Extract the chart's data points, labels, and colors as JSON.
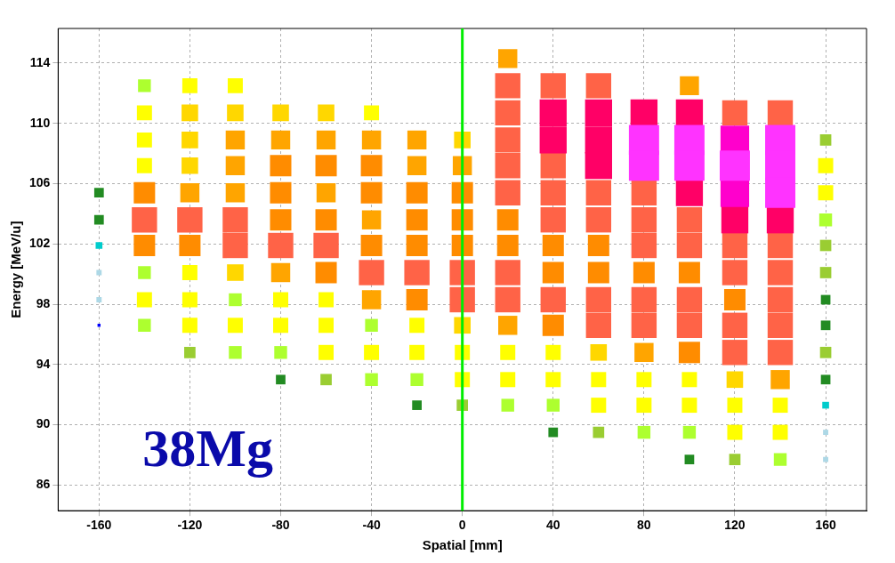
{
  "chart_data": {
    "type": "bubble",
    "xlabel": "Spatial [mm]",
    "ylabel": "Energy [MeV/u]",
    "annotations": [
      "38Mg"
    ],
    "xlim": [
      -178,
      178
    ],
    "xticks": [
      -160,
      -120,
      -80,
      -40,
      0,
      40,
      80,
      120,
      160
    ],
    "ylim": [
      84.3,
      116.3
    ],
    "yticks": [
      86,
      90,
      94,
      98,
      102,
      106,
      110,
      114
    ],
    "grid": true,
    "legend": false,
    "marker": "square",
    "ref_lines": [
      {
        "axis": "x",
        "value": 0,
        "color": "#00ee00"
      }
    ],
    "series": [
      {
        "color": "#ff33ff",
        "x": [
          80,
          100,
          140,
          80,
          100,
          120,
          140,
          140
        ],
        "values": [
          108.9,
          108.9,
          108.9,
          107.2,
          107.2,
          107.2,
          107.2,
          105.4
        ],
        "sizes": [
          1,
          1,
          1,
          1,
          1,
          1,
          1,
          1
        ]
      },
      {
        "color": "#ff00cc",
        "x": [
          120,
          120
        ],
        "values": [
          108.9,
          105.4
        ],
        "sizes": [
          0.9,
          0.9
        ]
      },
      {
        "color": "#ff0066",
        "x": [
          40,
          60,
          80,
          100,
          40,
          60,
          60,
          100,
          120,
          140
        ],
        "values": [
          110.7,
          110.7,
          110.7,
          110.7,
          108.9,
          108.9,
          107.2,
          105.4,
          103.6,
          103.6
        ],
        "sizes": [
          0.8,
          0.8,
          0.8,
          0.8,
          0.8,
          0.8,
          0.8,
          0.8,
          0.8,
          0.8
        ]
      },
      {
        "color": "#ff6347",
        "x": [
          20,
          40,
          60,
          20,
          120,
          140,
          20,
          20,
          40,
          20,
          40,
          60,
          80,
          -140,
          -120,
          -100,
          40,
          60,
          80,
          100,
          -100,
          -80,
          -60,
          80,
          100,
          120,
          140,
          -40,
          -20,
          0,
          20,
          120,
          140,
          0,
          20,
          40,
          60,
          80,
          100,
          140,
          60,
          80,
          100,
          120,
          140,
          120,
          140
        ],
        "values": [
          112.5,
          112.5,
          112.5,
          110.7,
          110.7,
          110.7,
          108.9,
          107.2,
          107.2,
          105.4,
          105.4,
          105.4,
          105.4,
          103.6,
          103.6,
          103.6,
          103.6,
          103.6,
          103.6,
          103.6,
          101.9,
          101.9,
          101.9,
          101.9,
          101.9,
          101.9,
          101.9,
          100.1,
          100.1,
          100.1,
          100.1,
          100.1,
          100.1,
          98.3,
          98.3,
          98.3,
          98.3,
          98.3,
          98.3,
          98.3,
          96.6,
          96.6,
          96.6,
          96.6,
          96.6,
          94.8,
          94.8
        ],
        "sizes": [
          0.7,
          0.7,
          0.7,
          0.7,
          0.7,
          0.7,
          0.7,
          0.7,
          0.7,
          0.7,
          0.7,
          0.7,
          0.7,
          0.7,
          0.7,
          0.7,
          0.7,
          0.7,
          0.7,
          0.7,
          0.7,
          0.7,
          0.7,
          0.7,
          0.7,
          0.7,
          0.7,
          0.7,
          0.7,
          0.7,
          0.7,
          0.7,
          0.7,
          0.7,
          0.7,
          0.7,
          0.7,
          0.7,
          0.7,
          0.7,
          0.7,
          0.7,
          0.7,
          0.7,
          0.7,
          0.7,
          0.7
        ]
      },
      {
        "color": "#ff8c00",
        "x": [
          -80,
          -60,
          -40,
          -140,
          -80,
          -40,
          -20,
          0,
          -80,
          -60,
          -20,
          0,
          20,
          -140,
          -120,
          -40,
          -20,
          0,
          20,
          40,
          60,
          -60,
          40,
          60,
          80,
          100,
          -20,
          120,
          40,
          100
        ],
        "values": [
          107.2,
          107.2,
          107.2,
          105.4,
          105.4,
          105.4,
          105.4,
          105.4,
          103.6,
          103.6,
          103.6,
          103.6,
          103.6,
          101.9,
          101.9,
          101.9,
          101.9,
          101.9,
          101.9,
          101.9,
          101.9,
          100.1,
          100.1,
          100.1,
          100.1,
          100.1,
          98.3,
          98.3,
          96.6,
          94.8
        ],
        "sizes": [
          0.5,
          0.5,
          0.5,
          0.5,
          0.5,
          0.5,
          0.5,
          0.5,
          0.5,
          0.5,
          0.5,
          0.5,
          0.5,
          0.5,
          0.5,
          0.5,
          0.5,
          0.5,
          0.5,
          0.5,
          0.5,
          0.5,
          0.5,
          0.5,
          0.5,
          0.5,
          0.5,
          0.5,
          0.5,
          0.5
        ]
      },
      {
        "color": "#ffa500",
        "x": [
          20,
          100,
          -100,
          -80,
          -60,
          -40,
          -20,
          -100,
          -20,
          0,
          -120,
          -100,
          -60,
          -40,
          -80,
          -40,
          20,
          80,
          140
        ],
        "values": [
          114.3,
          112.5,
          108.9,
          108.9,
          108.9,
          108.9,
          108.9,
          107.2,
          107.2,
          107.2,
          105.4,
          105.4,
          105.4,
          103.6,
          100.1,
          98.3,
          96.6,
          94.8,
          93.0
        ],
        "sizes": [
          0.4,
          0.4,
          0.4,
          0.4,
          0.4,
          0.4,
          0.4,
          0.4,
          0.4,
          0.4,
          0.4,
          0.4,
          0.4,
          0.4,
          0.4,
          0.4,
          0.4,
          0.4,
          0.4
        ]
      },
      {
        "color": "#ffd700",
        "x": [
          -120,
          -100,
          -80,
          -60,
          -120,
          0,
          -120,
          -100,
          0,
          60,
          120
        ],
        "values": [
          110.7,
          110.7,
          110.7,
          110.7,
          108.9,
          108.9,
          107.2,
          100.1,
          96.6,
          94.8,
          93.0
        ],
        "sizes": [
          0.3,
          0.3,
          0.3,
          0.3,
          0.3,
          0.3,
          0.3,
          0.3,
          0.3,
          0.3,
          0.3
        ]
      },
      {
        "color": "#ffff00",
        "x": [
          -120,
          -100,
          -140,
          -40,
          -140,
          -140,
          160,
          160,
          -120,
          -140,
          -120,
          -80,
          -60,
          -120,
          -100,
          -80,
          -60,
          -20,
          -60,
          -40,
          -20,
          0,
          20,
          40,
          0,
          20,
          40,
          60,
          80,
          100,
          60,
          80,
          100,
          120,
          140,
          120,
          140
        ],
        "values": [
          112.5,
          112.5,
          110.7,
          110.7,
          108.9,
          107.2,
          107.2,
          105.4,
          100.1,
          98.3,
          98.3,
          98.3,
          98.3,
          96.6,
          96.6,
          96.6,
          96.6,
          96.6,
          94.8,
          94.8,
          94.8,
          94.8,
          94.8,
          94.8,
          93.0,
          93.0,
          93.0,
          93.0,
          93.0,
          93.0,
          91.3,
          91.3,
          91.3,
          91.3,
          91.3,
          89.5,
          89.5
        ],
        "sizes": [
          0.25,
          0.25,
          0.25,
          0.25,
          0.25,
          0.25,
          0.25,
          0.25,
          0.25,
          0.25,
          0.25,
          0.25,
          0.25,
          0.25,
          0.25,
          0.25,
          0.25,
          0.25,
          0.25,
          0.25,
          0.25,
          0.25,
          0.25,
          0.25,
          0.25,
          0.25,
          0.25,
          0.25,
          0.25,
          0.25,
          0.25,
          0.25,
          0.25,
          0.25,
          0.25,
          0.25,
          0.25
        ]
      },
      {
        "color": "#adff2f",
        "x": [
          -140,
          160,
          -140,
          -100,
          -140,
          -40,
          -100,
          -80,
          -40,
          -20,
          20,
          40,
          80,
          100,
          140
        ],
        "values": [
          112.5,
          103.6,
          100.1,
          98.3,
          96.6,
          96.6,
          94.8,
          94.8,
          93.0,
          93.0,
          91.3,
          91.3,
          89.5,
          89.5,
          87.7
        ],
        "sizes": [
          0.18,
          0.18,
          0.18,
          0.18,
          0.18,
          0.18,
          0.18,
          0.18,
          0.18,
          0.18,
          0.18,
          0.18,
          0.18,
          0.18,
          0.18
        ]
      },
      {
        "color": "#9acd32",
        "x": [
          160,
          160,
          160,
          -120,
          160,
          -60,
          0,
          60,
          120
        ],
        "values": [
          108.9,
          101.9,
          100.1,
          94.8,
          94.8,
          93.0,
          91.3,
          89.5,
          87.7
        ],
        "sizes": [
          0.14,
          0.14,
          0.14,
          0.14,
          0.14,
          0.14,
          0.14,
          0.14,
          0.14
        ]
      },
      {
        "color": "#228b22",
        "x": [
          -160,
          -160,
          160,
          160,
          -80,
          160,
          -20,
          40,
          100
        ],
        "values": [
          105.4,
          103.6,
          98.3,
          96.6,
          93.0,
          93.0,
          91.3,
          89.5,
          87.7
        ],
        "sizes": [
          0.1,
          0.1,
          0.1,
          0.1,
          0.1,
          0.1,
          0.1,
          0.1,
          0.1
        ]
      },
      {
        "color": "#00cccc",
        "x": [
          -160,
          160
        ],
        "values": [
          101.9,
          91.3
        ],
        "sizes": [
          0.05,
          0.05
        ]
      },
      {
        "color": "#add8e6",
        "x": [
          -160,
          -160,
          160,
          160
        ],
        "values": [
          100.1,
          98.3,
          89.5,
          87.7
        ],
        "sizes": [
          0.03,
          0.03,
          0.03,
          0.03
        ]
      },
      {
        "color": "#0000ff",
        "x": [
          -160
        ],
        "values": [
          96.6
        ],
        "sizes": [
          0.01
        ]
      }
    ]
  }
}
